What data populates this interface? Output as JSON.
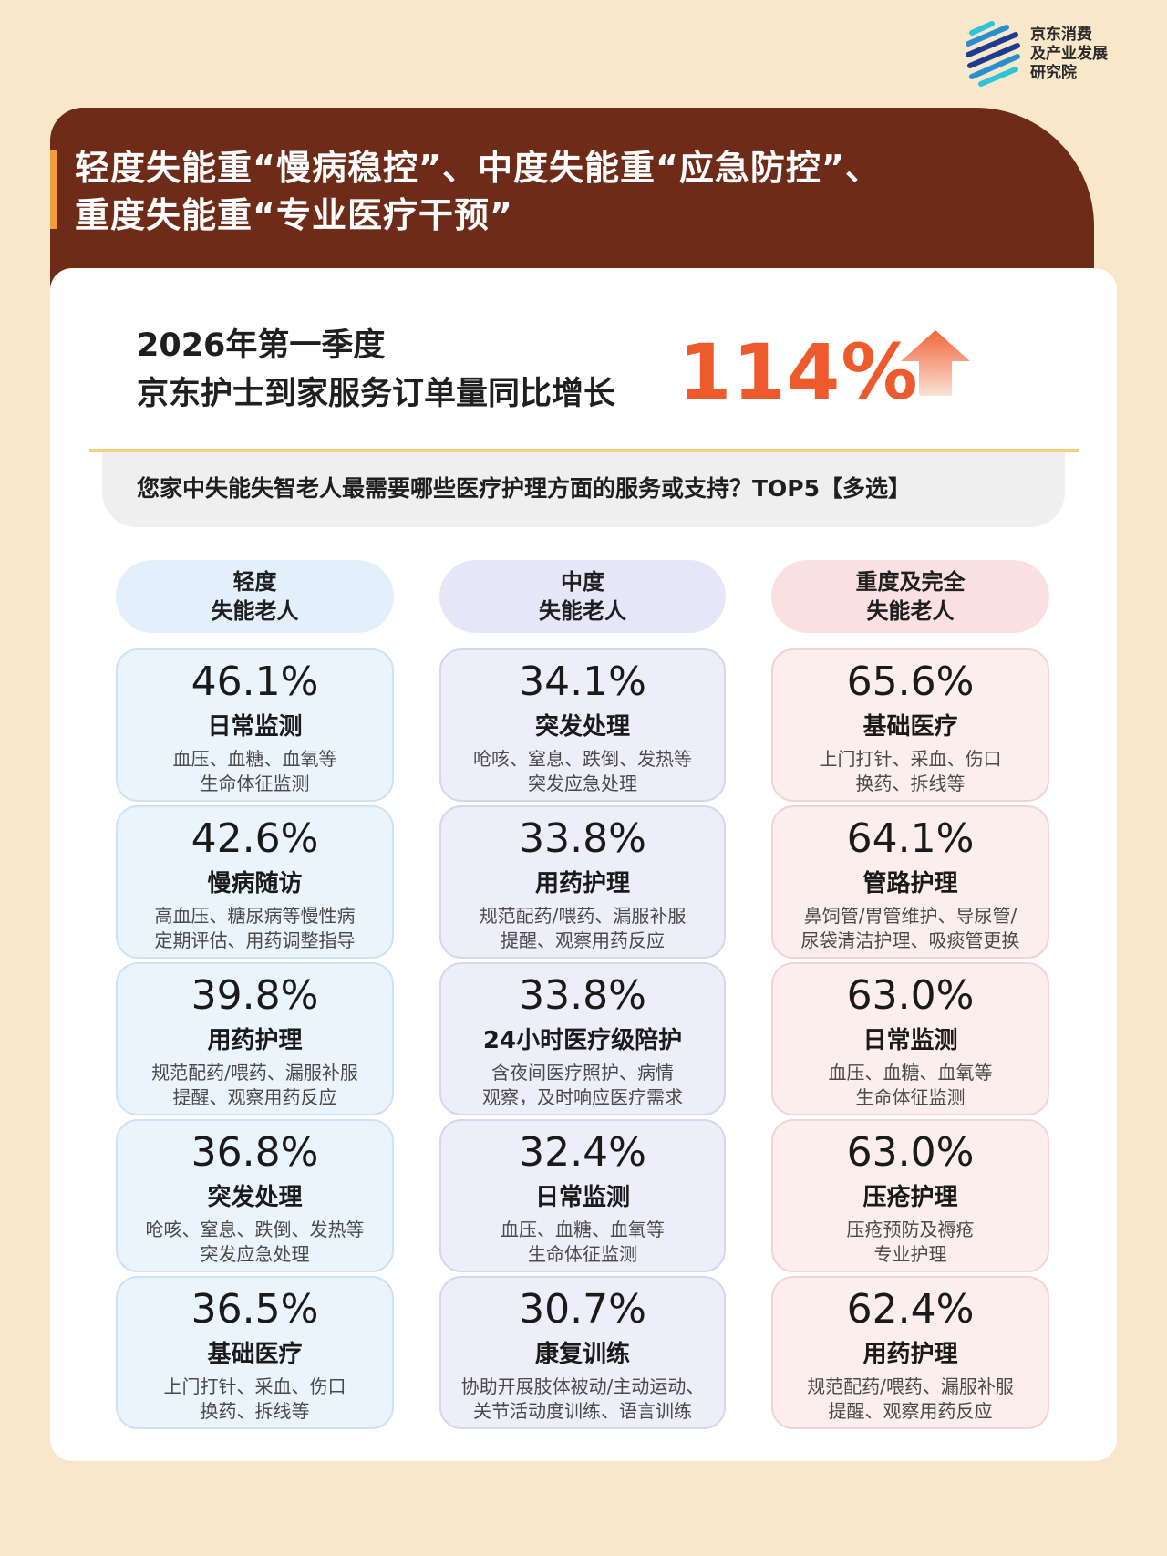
{
  "brand": {
    "line1": "京东消费",
    "line2": "及产业发展",
    "line3": "研究院",
    "color_dark": "#1f3b8f",
    "color_light": "#2ec4d6"
  },
  "headline": {
    "line1": "轻度失能重“慢病稳控”、中度失能重“应急防控”、",
    "line2": "重度失能重“专业医疗干预”"
  },
  "stat": {
    "line1": "2026年第一季度",
    "line2": "京东护士到家服务订单量同比增长",
    "value": "114%",
    "value_color": "#ef5a2c",
    "icon": "up-arrow-icon"
  },
  "question": "您家中失能失智老人最需要哪些医疗护理方面的服务或支持？TOP5【多选】",
  "columns": [
    {
      "head_line1": "轻度",
      "head_line2": "失能老人",
      "items": [
        {
          "pct": "46.1%",
          "name": "日常监测",
          "d1": "血压、血糖、血氧等",
          "d2": "生命体征监测"
        },
        {
          "pct": "42.6%",
          "name": "慢病随访",
          "d1": "高血压、糖尿病等慢性病",
          "d2": "定期评估、用药调整指导"
        },
        {
          "pct": "39.8%",
          "name": "用药护理",
          "d1": "规范配药/喂药、漏服补服",
          "d2": "提醒、观察用药反应"
        },
        {
          "pct": "36.8%",
          "name": "突发处理",
          "d1": "呛咳、窒息、跌倒、发热等",
          "d2": "突发应急处理"
        },
        {
          "pct": "36.5%",
          "name": "基础医疗",
          "d1": "上门打针、采血、伤口",
          "d2": "换药、拆线等"
        }
      ]
    },
    {
      "head_line1": "中度",
      "head_line2": "失能老人",
      "items": [
        {
          "pct": "34.1%",
          "name": "突发处理",
          "d1": "呛咳、窒息、跌倒、发热等",
          "d2": "突发应急处理"
        },
        {
          "pct": "33.8%",
          "name": "用药护理",
          "d1": "规范配药/喂药、漏服补服",
          "d2": "提醒、观察用药反应"
        },
        {
          "pct": "33.8%",
          "name": "24小时医疗级陪护",
          "d1": "含夜间医疗照护、病情",
          "d2": "观察，及时响应医疗需求"
        },
        {
          "pct": "32.4%",
          "name": "日常监测",
          "d1": "血压、血糖、血氧等",
          "d2": "生命体征监测"
        },
        {
          "pct": "30.7%",
          "name": "康复训练",
          "d1": "协助开展肢体被动/主动运动、",
          "d2": "关节活动度训练、语言训练"
        }
      ]
    },
    {
      "head_line1": "重度及完全",
      "head_line2": "失能老人",
      "items": [
        {
          "pct": "65.6%",
          "name": "基础医疗",
          "d1": "上门打针、采血、伤口",
          "d2": "换药、拆线等"
        },
        {
          "pct": "64.1%",
          "name": "管路护理",
          "d1": "鼻饲管/胃管维护、导尿管/",
          "d2": "尿袋清洁护理、吸痰管更换"
        },
        {
          "pct": "63.0%",
          "name": "日常监测",
          "d1": "血压、血糖、血氧等",
          "d2": "生命体征监测"
        },
        {
          "pct": "63.0%",
          "name": "压疮护理",
          "d1": "压疮预防及褥疮",
          "d2": "专业护理"
        },
        {
          "pct": "62.4%",
          "name": "用药护理",
          "d1": "规范配药/喂药、漏服补服",
          "d2": "提醒、观察用药反应"
        }
      ]
    }
  ]
}
